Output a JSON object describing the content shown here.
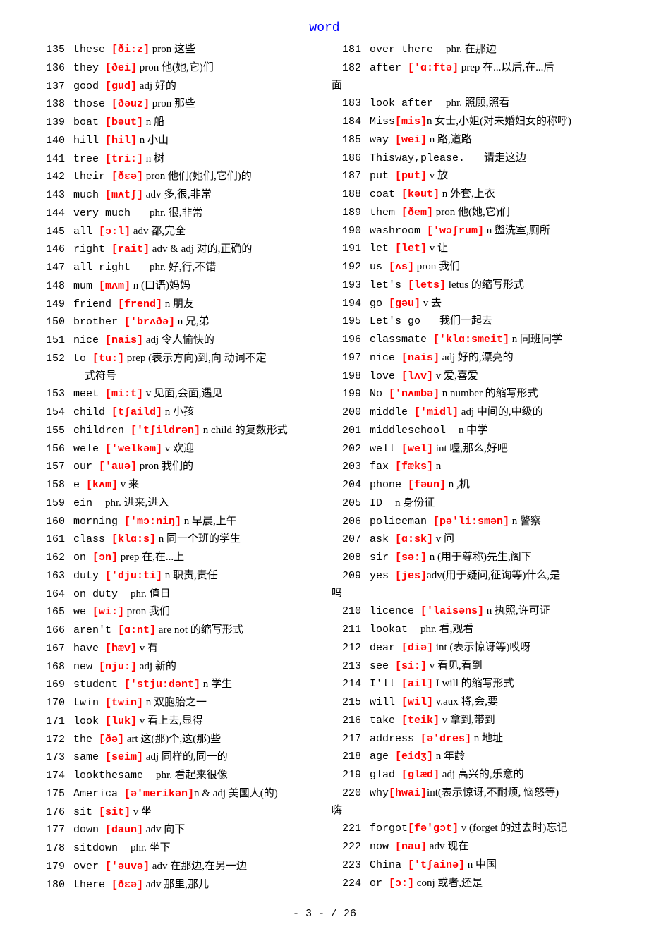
{
  "header": "word",
  "footer": "- 3 -  / 26",
  "colors": {
    "header_color": "#0000ff",
    "ipa_color": "#ff0000",
    "text_color": "#000000",
    "background": "#ffffff"
  },
  "typography": {
    "base_fontsize": 15,
    "header_fontsize": 18,
    "mono_font": "Courier New",
    "cjk_font": "SimSun",
    "line_height": 1.65
  },
  "left": [
    {
      "n": "135",
      "w": "these ",
      "ipa": "[ði:z]",
      "d": " pron 这些"
    },
    {
      "n": "136",
      "w": "they ",
      "ipa": "[ðei]",
      "d": " pron 他(她,它)们"
    },
    {
      "n": "137",
      "w": "good ",
      "ipa": "[gud]",
      "d": " adj 好的"
    },
    {
      "n": "138",
      "w": "those ",
      "ipa": "[ðəuz]",
      "d": " pron 那些"
    },
    {
      "n": "139",
      "w": "boat ",
      "ipa": "[bəut]",
      "d": " n 船"
    },
    {
      "n": "140",
      "w": "hill ",
      "ipa": "[hil]",
      "d": " n 小山"
    },
    {
      "n": "141",
      "w": "tree ",
      "ipa": "[tri:]",
      "d": " n 树"
    },
    {
      "n": "142",
      "w": "their ",
      "ipa": "[ðɛə]",
      "d": " pron 他们(她们,它们)的"
    },
    {
      "n": "143",
      "w": "much ",
      "ipa": "[mʌtʃ]",
      "d": " adv 多,很,非常"
    },
    {
      "n": "144",
      "w": "very much   ",
      "ipa": "",
      "d": "phr. 很,非常"
    },
    {
      "n": "145",
      "w": "all ",
      "ipa": "[ɔ:l]",
      "d": " adv 都,完全"
    },
    {
      "n": "146",
      "w": "right ",
      "ipa": "[rait]",
      "d": " adv & adj 对的,正确的"
    },
    {
      "n": "147",
      "w": "all right   ",
      "ipa": "",
      "d": "phr. 好,行,不错"
    },
    {
      "n": "148",
      "w": "mum ",
      "ipa": "[mʌm]",
      "d": " n (口语)妈妈"
    },
    {
      "n": "149",
      "w": "friend ",
      "ipa": "[frend]",
      "d": " n 朋友"
    },
    {
      "n": "150",
      "w": "brother ",
      "ipa": "['brʌðə]",
      "d": " n 兄,弟"
    },
    {
      "n": "151",
      "w": "nice ",
      "ipa": "[nais]",
      "d": " adj 令人愉快的"
    },
    {
      "n": "152",
      "w": "to ",
      "ipa": "[tu:]",
      "d": " prep (表示方向)到,向 动词不定",
      "cont": "式符号"
    },
    {
      "n": "153",
      "w": "meet ",
      "ipa": "[mi:t]",
      "d": " v 见面,会面,遇见"
    },
    {
      "n": "154",
      "w": "child ",
      "ipa": "[tʃaild]",
      "d": " n 小孩"
    },
    {
      "n": "155",
      "w": "children ",
      "ipa": "['tʃildrən]",
      "d": " n child 的复数形式"
    },
    {
      "n": "156",
      "w": "wele ",
      "ipa": "['welkəm]",
      "d": " v 欢迎"
    },
    {
      "n": "157",
      "w": "our ",
      "ipa": "['auə]",
      "d": " pron 我们的"
    },
    {
      "n": "158",
      "w": "e ",
      "ipa": "[kʌm]",
      "d": " v 来"
    },
    {
      "n": "159",
      "w": "ein  ",
      "ipa": "",
      "d": "phr. 进来,进入"
    },
    {
      "n": "160",
      "w": "morning ",
      "ipa": "['mɔ:niŋ]",
      "d": " n 早晨,上午"
    },
    {
      "n": "161",
      "w": "class ",
      "ipa": "[klɑ:s]",
      "d": " n 同一个班的学生"
    },
    {
      "n": "162",
      "w": "on ",
      "ipa": "[ɔn]",
      "d": " prep 在,在...上"
    },
    {
      "n": "163",
      "w": "duty ",
      "ipa": "['dju:ti]",
      "d": " n 职责,责任"
    },
    {
      "n": "164",
      "w": "on duty  ",
      "ipa": "",
      "d": "phr. 值日"
    },
    {
      "n": "165",
      "w": "we ",
      "ipa": "[wi:]",
      "d": " pron 我们"
    },
    {
      "n": "166",
      "w": "aren't ",
      "ipa": "[ɑ:nt]",
      "d": " are not 的缩写形式"
    },
    {
      "n": "167",
      "w": "have ",
      "ipa": "[hæv]",
      "d": " v 有"
    },
    {
      "n": "168",
      "w": "new ",
      "ipa": "[nju:]",
      "d": " adj 新的"
    },
    {
      "n": "169",
      "w": "student ",
      "ipa": "['stju:dənt]",
      "d": " n 学生"
    },
    {
      "n": "170",
      "w": "twin ",
      "ipa": "[twin]",
      "d": " n 双胞胎之一"
    },
    {
      "n": "171",
      "w": "look ",
      "ipa": "[luk]",
      "d": " v 看上去,显得"
    },
    {
      "n": "172",
      "w": "the ",
      "ipa": "[ðə]",
      "d": " art 这(那)个,这(那)些"
    },
    {
      "n": "173",
      "w": "same ",
      "ipa": "[seim]",
      "d": " adj 同样的,同一的"
    },
    {
      "n": "174",
      "w": "lookthesame  ",
      "ipa": "",
      "d": "phr. 看起来很像"
    },
    {
      "n": "175",
      "w": "America ",
      "ipa": "[ə'merikən]",
      "d": "n & adj 美国人(的)"
    },
    {
      "n": "176",
      "w": "sit ",
      "ipa": "[sit]",
      "d": " v 坐"
    },
    {
      "n": "177",
      "w": "down ",
      "ipa": "[daun]",
      "d": " adv 向下"
    },
    {
      "n": "178",
      "w": "sitdown  ",
      "ipa": "",
      "d": "phr. 坐下"
    },
    {
      "n": "179",
      "w": "over ",
      "ipa": "['əuvə]",
      "d": " adv 在那边,在另一边"
    },
    {
      "n": "180",
      "w": "there ",
      "ipa": "[ðɛə]",
      "d": " adv 那里,那儿"
    }
  ],
  "right": [
    {
      "n": "181",
      "w": "over there  ",
      "ipa": "",
      "d": "phr. 在那边"
    },
    {
      "n": "182",
      "w": "after ",
      "ipa": "['ɑ:ftə]",
      "d": " prep 在...以后,在...后",
      "cont0": "面"
    },
    {
      "n": "183",
      "w": "look after  ",
      "ipa": "",
      "d": "phr. 照顾,照看"
    },
    {
      "n": "184",
      "w": "Miss",
      "ipa": "[mis]",
      "d": "n 女士,小姐(对未婚妇女的称呼)"
    },
    {
      "n": "185",
      "w": "way ",
      "ipa": "[wei]",
      "d": " n 路,道路"
    },
    {
      "n": "186",
      "w": "Thisway,please.   ",
      "ipa": "",
      "d": "请走这边"
    },
    {
      "n": "187",
      "w": "put ",
      "ipa": "[put]",
      "d": " v 放"
    },
    {
      "n": "188",
      "w": "coat ",
      "ipa": "[kəut]",
      "d": " n 外套,上衣"
    },
    {
      "n": "189",
      "w": "them ",
      "ipa": "[ðem]",
      "d": " pron 他(她,它)们"
    },
    {
      "n": "190",
      "w": "washroom ",
      "ipa": "['wɔʃrum]",
      "d": " n 盥洗室,厕所"
    },
    {
      "n": "191",
      "w": "let ",
      "ipa": "[let]",
      "d": " v 让"
    },
    {
      "n": "192",
      "w": "us ",
      "ipa": "[ʌs]",
      "d": " pron 我们"
    },
    {
      "n": "193",
      "w": "let's ",
      "ipa": "[lets]",
      "d": " letus 的缩写形式"
    },
    {
      "n": "194",
      "w": "go ",
      "ipa": "[gəu]",
      "d": " v 去"
    },
    {
      "n": "195",
      "w": "Let's go   ",
      "ipa": "",
      "d": "我们一起去"
    },
    {
      "n": "196",
      "w": "classmate ",
      "ipa": "['klɑ:smeit]",
      "d": " n 同班同学"
    },
    {
      "n": "197",
      "w": "nice ",
      "ipa": "[nais]",
      "d": " adj 好的,漂亮的"
    },
    {
      "n": "198",
      "w": "love ",
      "ipa": "[lʌv]",
      "d": " v 爱,喜爱"
    },
    {
      "n": "199",
      "w": "No ",
      "ipa": "['nʌmbə]",
      "d": " n number 的缩写形式"
    },
    {
      "n": "200",
      "w": "middle ",
      "ipa": "['midl]",
      "d": " adj 中间的,中级的"
    },
    {
      "n": "201",
      "w": "middleschool  ",
      "ipa": "",
      "d": "n 中学"
    },
    {
      "n": "202",
      "w": "well ",
      "ipa": "[wel]",
      "d": " int 喔,那么,好吧"
    },
    {
      "n": "203",
      "w": "fax ",
      "ipa": "[fæks]",
      "d": " n"
    },
    {
      "n": "204",
      "w": "phone ",
      "ipa": "[fəun]",
      "d": " n ,机"
    },
    {
      "n": "205",
      "w": "ID  ",
      "ipa": "",
      "d": "n 身份征"
    },
    {
      "n": "206",
      "w": "policeman ",
      "ipa": "[pə'li:smən]",
      "d": " n 警察"
    },
    {
      "n": "207",
      "w": "ask ",
      "ipa": "[ɑ:sk]",
      "d": " v 问"
    },
    {
      "n": "208",
      "w": "sir ",
      "ipa": "[sə:]",
      "d": " n (用于尊称)先生,阁下"
    },
    {
      "n": "209",
      "w": "yes ",
      "ipa": "[jes]",
      "d": "adv(用于疑问,征询等)什么,是",
      "cont0": "吗"
    },
    {
      "n": "210",
      "w": "licence ",
      "ipa": "['laisəns]",
      "d": " n 执照,许可证"
    },
    {
      "n": "211",
      "w": "lookat  ",
      "ipa": "",
      "d": "phr. 看,观看"
    },
    {
      "n": "212",
      "w": "dear ",
      "ipa": "[diə]",
      "d": " int (表示惊讶等)哎呀"
    },
    {
      "n": "213",
      "w": "see ",
      "ipa": "[si:]",
      "d": " v 看见,看到"
    },
    {
      "n": "214",
      "w": "I'll ",
      "ipa": "[ail]",
      "d": " I will 的缩写形式"
    },
    {
      "n": "215",
      "w": "will ",
      "ipa": "[wil]",
      "d": " v.aux 将,会,要"
    },
    {
      "n": "216",
      "w": "take ",
      "ipa": "[teik]",
      "d": " v 拿到,带到"
    },
    {
      "n": "217",
      "w": "address ",
      "ipa": "[ə'dres]",
      "d": " n 地址"
    },
    {
      "n": "218",
      "w": "age ",
      "ipa": "[eidʒ]",
      "d": " n 年龄"
    },
    {
      "n": "219",
      "w": "glad ",
      "ipa": "[glæd]",
      "d": " adj 高兴的,乐意的"
    },
    {
      "n": "220",
      "w": "why",
      "ipa": "[hwai]",
      "d": "int(表示惊讶,不耐烦, 恼怒等)",
      "cont0": "嗨"
    },
    {
      "n": "221",
      "w": "forgot",
      "ipa": "[fə'gɔt]",
      "d": " v (forget 的过去时)忘记"
    },
    {
      "n": "222",
      "w": "now ",
      "ipa": "[nau]",
      "d": " adv 现在"
    },
    {
      "n": "223",
      "w": "China ",
      "ipa": "['tʃainə]",
      "d": " n 中国"
    },
    {
      "n": "224",
      "w": "or ",
      "ipa": "[ɔ:]",
      "d": " conj 或者,还是"
    }
  ]
}
